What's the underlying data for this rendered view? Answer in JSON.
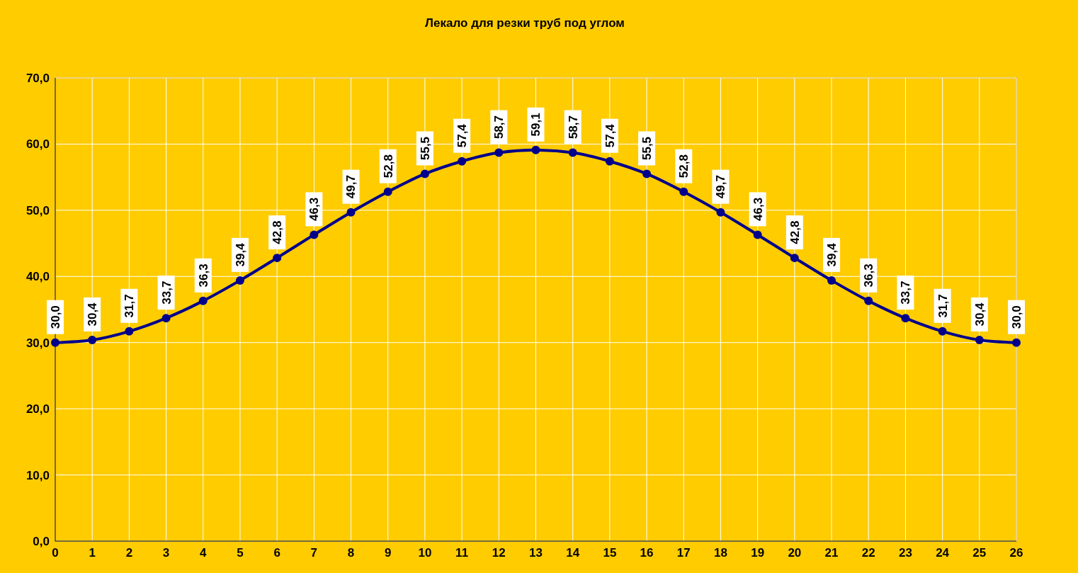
{
  "chart_data": {
    "type": "line",
    "title": "Лекало для резки труб под углом",
    "x": [
      0,
      1,
      2,
      3,
      4,
      5,
      6,
      7,
      8,
      9,
      10,
      11,
      12,
      13,
      14,
      15,
      16,
      17,
      18,
      19,
      20,
      21,
      22,
      23,
      24,
      25,
      26
    ],
    "series": [
      {
        "color": "#00008b",
        "values": [
          30.0,
          30.4,
          31.7,
          33.7,
          36.3,
          39.4,
          42.8,
          46.3,
          49.7,
          52.8,
          55.5,
          57.4,
          58.7,
          59.1,
          58.7,
          57.4,
          55.5,
          52.8,
          49.7,
          46.3,
          42.8,
          39.4,
          36.3,
          33.7,
          31.7,
          30.4,
          30.0
        ],
        "value_labels": [
          "30,0",
          "30,4",
          "31,7",
          "33,7",
          "36,3",
          "39,4",
          "42,8",
          "46,3",
          "49,7",
          "52,8",
          "55,5",
          "57,4",
          "58,7",
          "59,1",
          "58,7",
          "57,4",
          "55,5",
          "52,8",
          "49,7",
          "46,3",
          "42,8",
          "39,4",
          "36,3",
          "33,7",
          "31,7",
          "30,4",
          "30,0"
        ]
      }
    ],
    "xlim": [
      0,
      26
    ],
    "xticks": [
      0,
      1,
      2,
      3,
      4,
      5,
      6,
      7,
      8,
      9,
      10,
      11,
      12,
      13,
      14,
      15,
      16,
      17,
      18,
      19,
      20,
      21,
      22,
      23,
      24,
      25,
      26
    ],
    "ylim": [
      0,
      70
    ],
    "yticks": [
      {
        "value": 0,
        "label": "0,0"
      },
      {
        "value": 10,
        "label": "10,0"
      },
      {
        "value": 20,
        "label": "20,0"
      },
      {
        "value": 30,
        "label": "30,0"
      },
      {
        "value": 40,
        "label": "40,0"
      },
      {
        "value": 50,
        "label": "50,0"
      },
      {
        "value": 60,
        "label": "60,0"
      },
      {
        "value": 70,
        "label": "70,0"
      }
    ],
    "grid": true,
    "marker": "circle",
    "line_style": "solid"
  }
}
